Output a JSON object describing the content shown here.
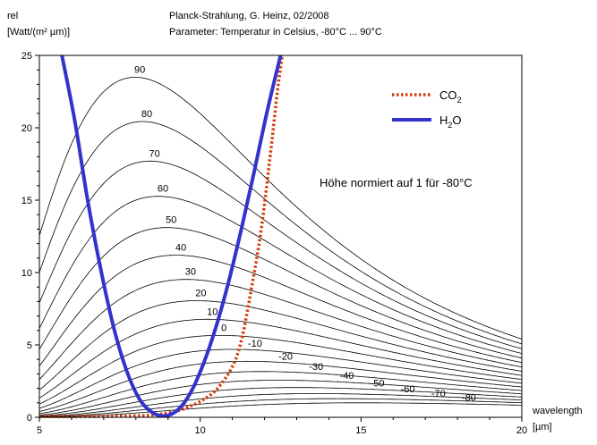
{
  "header": {
    "ylabel_line1": "rel",
    "ylabel_line2": "[Watt/(m² µm)]",
    "title": "Planck-Strahlung, G. Heinz, 02/2008",
    "subtitle": "Parameter: Temperatur in Celsius, -80°C ... 90°C",
    "xlabel_line1": "wavelength",
    "xlabel_line2": "[µm]"
  },
  "chart_data": {
    "type": "line",
    "title": "Planck-Strahlung, G. Heinz, 02/2008",
    "subtitle": "Parameter: Temperatur in Celsius, -80°C ... 90°C",
    "xlabel": "wavelength [µm]",
    "ylabel": "rel [Watt/(m² µm)]",
    "xlim": [
      5,
      20
    ],
    "ylim": [
      0,
      25
    ],
    "x_ticks": [
      5,
      10,
      15,
      20
    ],
    "y_ticks": [
      0,
      5,
      10,
      15,
      20,
      25
    ],
    "grid": false,
    "annotation": "Höhe normiert auf 1 für -80°C",
    "temperatures_celsius": [
      -80,
      -70,
      -60,
      -50,
      -40,
      -30,
      -20,
      -10,
      0,
      10,
      20,
      30,
      40,
      50,
      60,
      70,
      80,
      90
    ],
    "temperature_labels": [
      "-80",
      "-70",
      "-60",
      "-50",
      "-40",
      "-30",
      "-20",
      "-10",
      "0",
      "10",
      "20",
      "30",
      "40",
      "50",
      "60",
      "70",
      "80",
      "90"
    ],
    "planck_peaks": [
      {
        "t": 90,
        "x": 8.0,
        "y": 23.6
      },
      {
        "t": 80,
        "x": 8.2,
        "y": 20.3
      },
      {
        "t": 70,
        "x": 8.5,
        "y": 17.8
      },
      {
        "t": 60,
        "x": 8.7,
        "y": 15.5
      },
      {
        "t": 50,
        "x": 9.0,
        "y": 13.4
      },
      {
        "t": 40,
        "x": 9.2,
        "y": 11.5
      },
      {
        "t": 30,
        "x": 9.6,
        "y": 9.8
      },
      {
        "t": 20,
        "x": 9.9,
        "y": 8.2
      },
      {
        "t": 10,
        "x": 10.2,
        "y": 6.9
      },
      {
        "t": 0,
        "x": 10.6,
        "y": 5.7
      }
    ],
    "series": [
      {
        "name": "CO2",
        "color": "#d43c0a",
        "style": "dotted",
        "points": [
          [
            5,
            0.05
          ],
          [
            8,
            0.1
          ],
          [
            9,
            0.3
          ],
          [
            9.5,
            0.6
          ],
          [
            10,
            1.1
          ],
          [
            10.5,
            1.9
          ],
          [
            11,
            3.5
          ],
          [
            11.3,
            5.5
          ],
          [
            11.6,
            9
          ],
          [
            11.9,
            13
          ],
          [
            12.2,
            18.5
          ],
          [
            12.4,
            22.5
          ],
          [
            12.55,
            25
          ]
        ]
      },
      {
        "name": "H2O",
        "color": "#3333cc",
        "style": "solid",
        "points": [
          [
            5.7,
            25
          ],
          [
            6.1,
            20.5
          ],
          [
            6.5,
            15
          ],
          [
            6.9,
            10.3
          ],
          [
            7.3,
            6.3
          ],
          [
            7.7,
            3.3
          ],
          [
            8.1,
            1.3
          ],
          [
            8.5,
            0.35
          ],
          [
            8.9,
            0.1
          ],
          [
            9.3,
            0.5
          ],
          [
            9.7,
            1.7
          ],
          [
            10.1,
            3.7
          ],
          [
            10.5,
            6.3
          ],
          [
            10.9,
            9.5
          ],
          [
            11.3,
            13.2
          ],
          [
            11.7,
            17.2
          ],
          [
            12.1,
            21.3
          ],
          [
            12.5,
            25
          ]
        ]
      }
    ],
    "legend": [
      {
        "label": "CO",
        "sub": "2",
        "style": "dotted",
        "color": "#d43c0a"
      },
      {
        "label": "H",
        "sub": "2",
        "tail": "O",
        "style": "solid",
        "color": "#3333cc"
      }
    ],
    "legend_position": "top-right"
  },
  "colors": {
    "planck": "#000000",
    "co2": "#d43c0a",
    "h2o": "#3333cc",
    "frame": "#000000"
  }
}
